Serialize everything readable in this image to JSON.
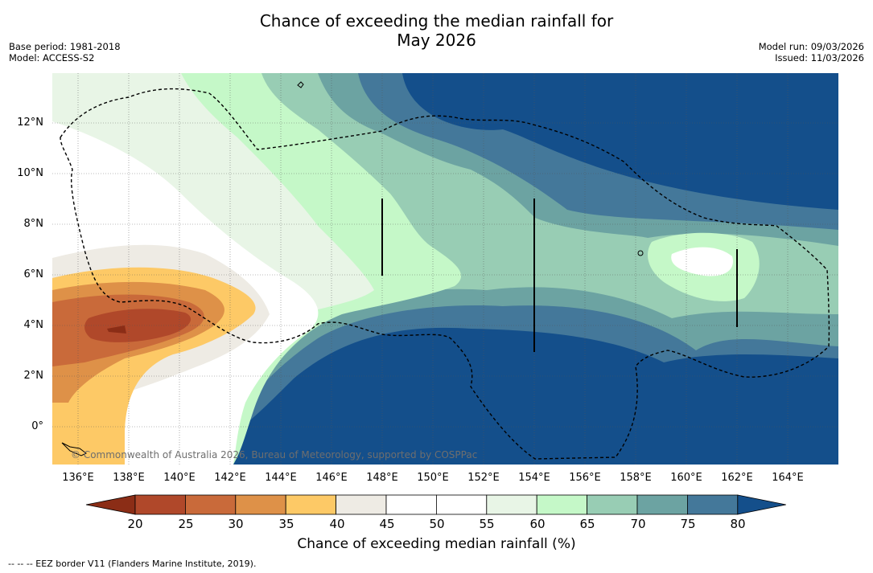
{
  "header": {
    "title_line1": "Chance of exceeding the median rainfall for",
    "title_line2": "May 2026",
    "base_period": "Base period: 1981-2018",
    "model": "Model: ACCESS-S2",
    "model_run": "Model run: 09/03/2026",
    "issued": "Issued: 11/03/2026"
  },
  "map": {
    "y_ticks": [
      "12°N",
      "10°N",
      "8°N",
      "6°N",
      "4°N",
      "2°N",
      "0°"
    ],
    "x_ticks": [
      "136°E",
      "138°E",
      "140°E",
      "142°E",
      "144°E",
      "146°E",
      "148°E",
      "150°E",
      "152°E",
      "154°E",
      "156°E",
      "158°E",
      "160°E",
      "162°E",
      "164°E"
    ],
    "copyright": "© Commonwealth of Australia 2026, Bureau of Meteorology, supported by COSPPac"
  },
  "colorbar": {
    "ticks": [
      "20",
      "25",
      "30",
      "35",
      "40",
      "45",
      "50",
      "55",
      "60",
      "65",
      "70",
      "75",
      "80"
    ],
    "colors": [
      "#8b2d16",
      "#b0482a",
      "#c96a3a",
      "#de9148",
      "#fdc966",
      "#eeebe4",
      "#ffffff",
      "#ffffff",
      "#e8f5e6",
      "#c5f8c8",
      "#98cdb4",
      "#6ca3a2",
      "#44789a",
      "#144f8b"
    ],
    "title": "Chance of exceeding median rainfall (%)"
  },
  "footnote": "--  --  -- EEZ border V11 (Flanders Marine Institute, 2019)."
}
